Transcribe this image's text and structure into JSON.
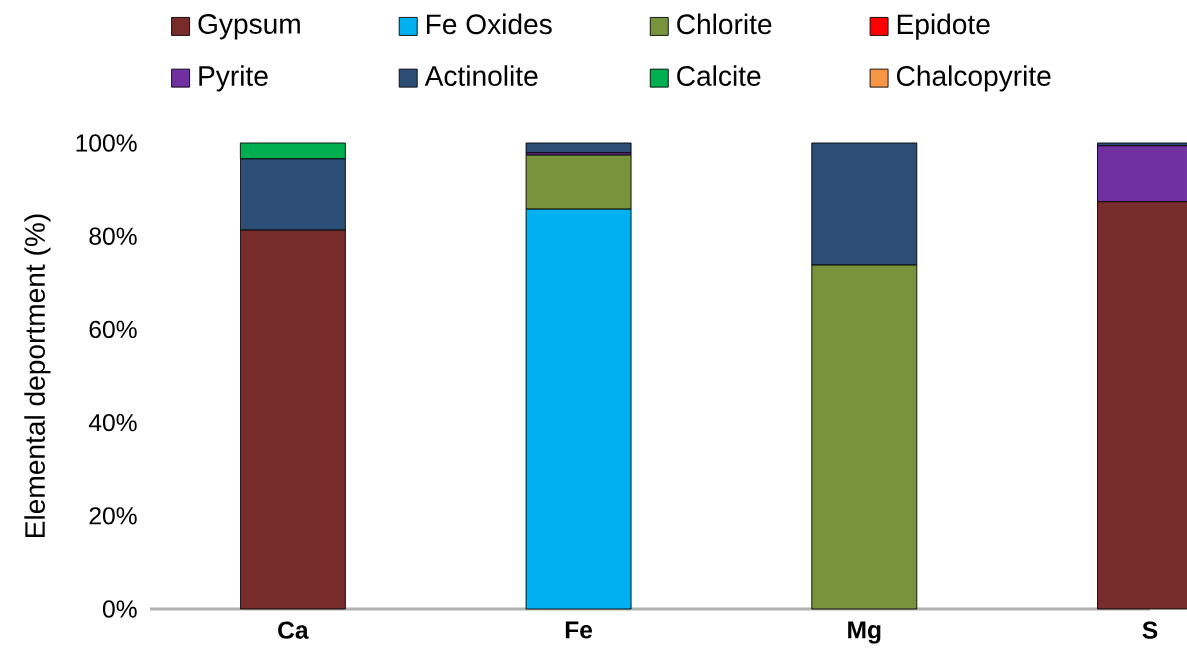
{
  "chart_data": {
    "type": "bar",
    "stacked": true,
    "ylabel": "Elemental deportment (%)",
    "categories": [
      "Ca",
      "Fe",
      "Mg",
      "S"
    ],
    "series": [
      {
        "name": "Gypsum",
        "color": "#772b2b",
        "values": [
          81.3,
          0,
          0,
          87.4
        ]
      },
      {
        "name": "Fe Oxides",
        "color": "#00b0f0",
        "values": [
          0,
          85.8,
          0,
          0
        ]
      },
      {
        "name": "Chlorite",
        "color": "#77933c",
        "values": [
          0,
          11.6,
          73.8,
          0
        ]
      },
      {
        "name": "Epidote",
        "color": "#ff0000",
        "values": [
          0,
          0,
          0,
          0
        ]
      },
      {
        "name": "Pyrite",
        "color": "#7030a0",
        "values": [
          0,
          0.5,
          0,
          12.0
        ]
      },
      {
        "name": "Actinolite",
        "color": "#2c4d75",
        "values": [
          15.3,
          2.1,
          26.2,
          0.6
        ]
      },
      {
        "name": "Calcite",
        "color": "#00b050",
        "values": [
          3.4,
          0,
          0,
          0
        ]
      },
      {
        "name": "Chalcopyrite",
        "color": "#f79646",
        "values": [
          0,
          0,
          0,
          0
        ]
      }
    ],
    "ylim": [
      0,
      100
    ],
    "yticks": [
      {
        "value": 0,
        "label": "0%"
      },
      {
        "value": 20,
        "label": "20%"
      },
      {
        "value": 40,
        "label": "40%"
      },
      {
        "value": 60,
        "label": "60%"
      },
      {
        "value": 80,
        "label": "80%"
      },
      {
        "value": 100,
        "label": "100%"
      }
    ],
    "grid": false,
    "legend": "top"
  }
}
